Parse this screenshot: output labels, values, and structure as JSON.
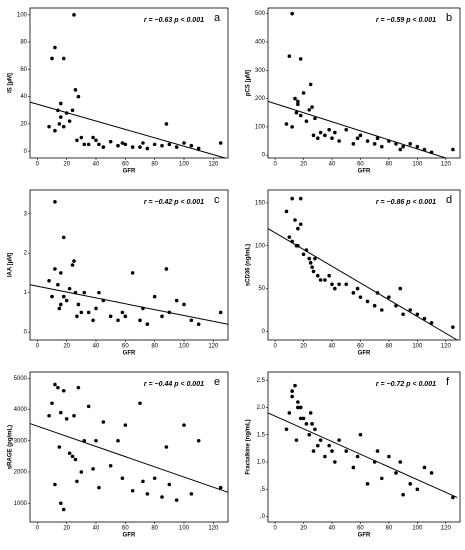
{
  "chart_data": [
    {
      "type": "scatter",
      "panel_label": "a",
      "annotation": "r = −0.63 p < 0.001",
      "x_label": "GFR",
      "y_label": "IS [µM]",
      "x": [
        10,
        12,
        14,
        15,
        16,
        18,
        20,
        22,
        25,
        27,
        28,
        30,
        32,
        12,
        18,
        24,
        35,
        38,
        40,
        42,
        45,
        50,
        55,
        58,
        60,
        65,
        70,
        72,
        75,
        80,
        85,
        88,
        90,
        95,
        100,
        105,
        110,
        125,
        8,
        16,
        26
      ],
      "values": [
        68,
        76,
        30,
        20,
        25,
        68,
        28,
        22,
        100,
        8,
        40,
        10,
        5,
        15,
        18,
        30,
        5,
        10,
        8,
        5,
        3,
        7,
        4,
        6,
        5,
        3,
        3,
        6,
        2,
        5,
        4,
        20,
        5,
        3,
        6,
        4,
        2,
        6,
        18,
        35,
        45
      ],
      "trend": {
        "x": [
          -5,
          128
        ],
        "y": [
          36,
          -5
        ]
      },
      "xlim": [
        -5,
        130
      ],
      "ylim": [
        -5,
        105
      ],
      "xticks": [
        0,
        20,
        40,
        60,
        80,
        100,
        120
      ],
      "yticks": [
        0,
        20,
        40,
        60,
        80,
        100
      ],
      "color": "#000000"
    },
    {
      "type": "scatter",
      "panel_label": "b",
      "annotation": "r = −0.59 p < 0.001",
      "x_label": "GFR",
      "y_label": "pCS [µM]",
      "x": [
        10,
        12,
        14,
        15,
        16,
        18,
        20,
        22,
        25,
        27,
        28,
        30,
        32,
        12,
        18,
        24,
        35,
        38,
        40,
        42,
        45,
        50,
        55,
        58,
        60,
        65,
        70,
        72,
        75,
        80,
        85,
        88,
        90,
        95,
        100,
        105,
        110,
        125,
        8,
        16,
        26
      ],
      "values": [
        350,
        500,
        200,
        150,
        180,
        340,
        220,
        120,
        250,
        70,
        130,
        60,
        80,
        100,
        140,
        160,
        70,
        90,
        60,
        80,
        50,
        90,
        40,
        60,
        70,
        50,
        40,
        60,
        30,
        50,
        40,
        20,
        30,
        40,
        30,
        20,
        10,
        20,
        110,
        190,
        170
      ],
      "trend": {
        "x": [
          -5,
          120
        ],
        "y": [
          190,
          -10
        ]
      },
      "xlim": [
        -5,
        130
      ],
      "ylim": [
        -10,
        520
      ],
      "xticks": [
        0,
        20,
        40,
        60,
        80,
        100,
        120
      ],
      "yticks": [
        0,
        100,
        200,
        300,
        400,
        500
      ],
      "color": "#000000"
    },
    {
      "type": "scatter",
      "panel_label": "c",
      "annotation": "r = −0.42 p < 0.001",
      "x_label": "GFR",
      "y_label": "IAA [µM]",
      "x": [
        10,
        12,
        14,
        15,
        16,
        18,
        20,
        22,
        25,
        27,
        28,
        30,
        32,
        12,
        18,
        24,
        35,
        38,
        40,
        42,
        45,
        50,
        55,
        58,
        60,
        65,
        70,
        72,
        75,
        80,
        85,
        88,
        90,
        95,
        100,
        105,
        110,
        125,
        8,
        16,
        26
      ],
      "values": [
        0.9,
        3.3,
        1.2,
        0.6,
        1.5,
        2.4,
        0.8,
        1.1,
        1.8,
        0.4,
        0.7,
        0.5,
        1.0,
        1.6,
        0.9,
        1.7,
        0.5,
        0.3,
        0.6,
        1.0,
        0.8,
        0.4,
        0.3,
        0.5,
        0.4,
        1.5,
        0.3,
        0.6,
        0.2,
        0.9,
        0.4,
        1.6,
        0.5,
        0.8,
        0.7,
        0.3,
        0.2,
        0.5,
        1.3,
        0.7,
        1.0
      ],
      "trend": {
        "x": [
          -5,
          130
        ],
        "y": [
          1.2,
          0.2
        ]
      },
      "xlim": [
        -5,
        130
      ],
      "ylim": [
        -0.2,
        3.6
      ],
      "xticks": [
        0,
        20,
        40,
        60,
        80,
        100,
        120
      ],
      "yticks": [
        0,
        1,
        2,
        3
      ],
      "color": "#000000"
    },
    {
      "type": "scatter",
      "panel_label": "d",
      "annotation": "r = −0.86 p < 0.001",
      "x_label": "GFR",
      "y_label": "sCD36 (ng/mL)",
      "x": [
        10,
        12,
        14,
        15,
        16,
        18,
        20,
        22,
        25,
        27,
        28,
        30,
        32,
        12,
        18,
        24,
        35,
        38,
        40,
        42,
        45,
        50,
        55,
        58,
        60,
        65,
        70,
        72,
        75,
        80,
        85,
        88,
        90,
        95,
        100,
        105,
        110,
        125,
        8,
        16,
        26
      ],
      "values": [
        110,
        155,
        130,
        100,
        120,
        155,
        90,
        95,
        80,
        70,
        85,
        65,
        60,
        105,
        125,
        85,
        60,
        65,
        55,
        50,
        55,
        55,
        45,
        50,
        40,
        35,
        30,
        45,
        25,
        40,
        30,
        50,
        20,
        25,
        20,
        15,
        10,
        5,
        140,
        100,
        75
      ],
      "trend": {
        "x": [
          -5,
          128
        ],
        "y": [
          120,
          -10
        ]
      },
      "xlim": [
        -5,
        130
      ],
      "ylim": [
        -10,
        165
      ],
      "xticks": [
        0,
        20,
        40,
        60,
        80,
        100,
        120
      ],
      "yticks": [
        0,
        50,
        100,
        150
      ],
      "color": "#000000"
    },
    {
      "type": "scatter",
      "panel_label": "e",
      "annotation": "r = −0.44 p < 0.001",
      "x_label": "GFR",
      "y_label": "sRAGE (pg/mL)",
      "x": [
        10,
        12,
        14,
        15,
        16,
        18,
        20,
        22,
        25,
        27,
        28,
        30,
        32,
        12,
        18,
        24,
        35,
        38,
        40,
        42,
        45,
        50,
        55,
        58,
        60,
        65,
        70,
        72,
        75,
        80,
        85,
        88,
        90,
        95,
        100,
        105,
        110,
        125,
        8,
        16,
        26
      ],
      "values": [
        4200,
        4800,
        4700,
        2800,
        3900,
        4600,
        3700,
        2600,
        3800,
        1700,
        4700,
        2000,
        3000,
        1600,
        800,
        2500,
        4100,
        2100,
        3000,
        1500,
        3600,
        2200,
        3000,
        1800,
        3500,
        1400,
        4200,
        1700,
        1300,
        1800,
        1200,
        2800,
        1600,
        1100,
        3500,
        1300,
        3000,
        1500,
        3800,
        1000,
        2400
      ],
      "trend": {
        "x": [
          -5,
          130
        ],
        "y": [
          3550,
          1350
        ]
      },
      "xlim": [
        -5,
        130
      ],
      "ylim": [
        400,
        5200
      ],
      "xticks": [
        0,
        20,
        40,
        60,
        80,
        100,
        120
      ],
      "yticks": [
        1000,
        2000,
        3000,
        4000,
        5000
      ],
      "color": "#000000"
    },
    {
      "type": "scatter",
      "panel_label": "f",
      "annotation": "r = −0.72 p < 0.001",
      "x_label": "GFR",
      "y_label": "Fractalkine (ng/mL)",
      "x": [
        10,
        12,
        14,
        15,
        16,
        18,
        20,
        22,
        25,
        27,
        28,
        30,
        32,
        12,
        18,
        24,
        35,
        38,
        40,
        42,
        45,
        50,
        55,
        58,
        60,
        65,
        70,
        72,
        75,
        80,
        85,
        88,
        90,
        95,
        100,
        105,
        110,
        125,
        8,
        16,
        26
      ],
      "values": [
        1.9,
        2.3,
        2.4,
        1.4,
        2.1,
        2.0,
        1.8,
        1.7,
        1.9,
        1.2,
        1.6,
        1.3,
        1.4,
        2.2,
        1.8,
        1.5,
        1.1,
        1.3,
        1.2,
        1.0,
        1.4,
        1.2,
        0.9,
        1.1,
        1.5,
        0.6,
        1.0,
        1.2,
        0.7,
        1.1,
        0.8,
        1.0,
        0.4,
        0.6,
        0.5,
        0.9,
        0.8,
        0.35,
        1.6,
        2.0,
        1.7
      ],
      "trend": {
        "x": [
          -5,
          128
        ],
        "y": [
          1.9,
          0.35
        ]
      },
      "xlim": [
        -5,
        130
      ],
      "ylim": [
        -0.1,
        2.65
      ],
      "xticks": [
        0,
        20,
        40,
        60,
        80,
        100,
        120
      ],
      "yticks": [
        {
          "value": 0,
          "label": ",0"
        },
        {
          "value": 0.5,
          "label": ",5"
        },
        {
          "value": 1,
          "label": "1,0"
        },
        {
          "value": 1.5,
          "label": "1,5"
        },
        {
          "value": 2,
          "label": "2,0"
        },
        {
          "value": 2.5,
          "label": "2,5"
        }
      ],
      "color": "#000000"
    }
  ]
}
